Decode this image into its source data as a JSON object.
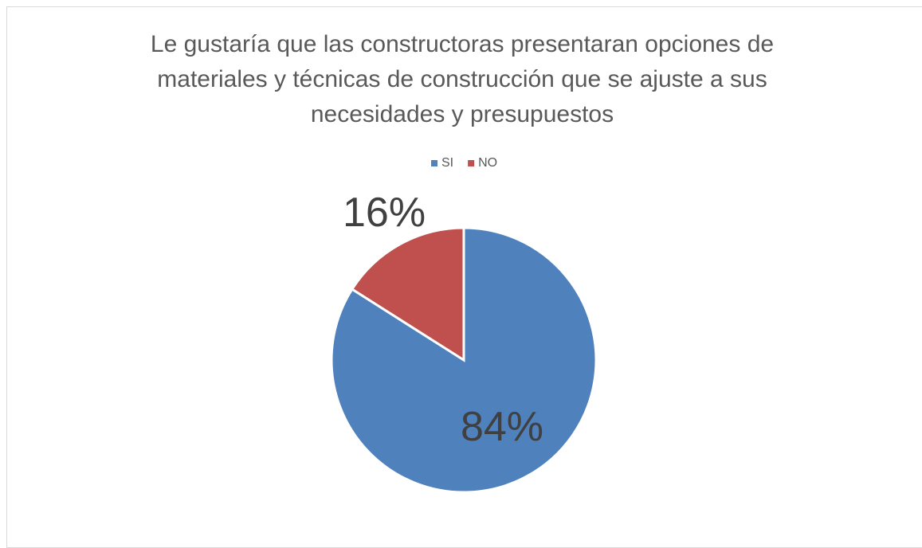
{
  "chart_data": {
    "type": "pie",
    "title": "Le gustaría que las constructoras presentaran opciones de materiales y técnicas de construcción que se ajuste a sus necesidades y presupuestos",
    "categories": [
      "SI",
      "NO"
    ],
    "values": [
      84,
      16
    ],
    "value_labels": [
      "84%",
      "16%"
    ],
    "colors": [
      "#4f81bd",
      "#c0504d"
    ],
    "legend": "top"
  }
}
